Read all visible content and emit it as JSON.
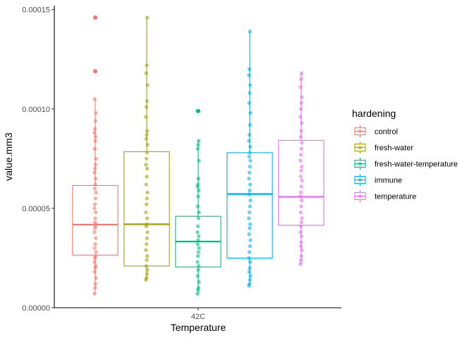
{
  "chart_data": {
    "type": "box",
    "xlabel": "Temperature",
    "ylabel": "value.mm3",
    "categories": [
      "42C"
    ],
    "ylim": [
      0,
      0.000152
    ],
    "yticks": [
      0,
      5e-05,
      0.0001,
      0.00015
    ],
    "ytick_labels": [
      "0.00000",
      "0.00005",
      "0.00010",
      "0.00015"
    ],
    "legend": {
      "title": "hardening",
      "position": "right"
    },
    "grid": false,
    "series": [
      {
        "name": "control",
        "color": "#F8766D",
        "box": {
          "q1": 2.65e-05,
          "median": 4.18e-05,
          "q3": 6.15e-05,
          "whisker_low": 7e-06,
          "whisker_high": 0.000105
        },
        "outliers": [
          0.000119,
          0.000146
        ],
        "points": [
          7e-06,
          1e-05,
          1.2e-05,
          1.5e-05,
          1.8e-05,
          2e-05,
          2.1e-05,
          2.3e-05,
          2.5e-05,
          2.6e-05,
          2.8e-05,
          3e-05,
          3.2e-05,
          3.5e-05,
          3.8e-05,
          4e-05,
          4.1e-05,
          4.2e-05,
          4.3e-05,
          4.5e-05,
          4.8e-05,
          5e-05,
          5.2e-05,
          5.5e-05,
          5.8e-05,
          6e-05,
          6.2e-05,
          6.5e-05,
          6.8e-05,
          7e-05,
          7.2e-05,
          7.5e-05,
          8e-05,
          8.4e-05,
          8.6e-05,
          8.8e-05,
          9e-05,
          9.4e-05,
          9.8e-05,
          0.000105,
          0.000119,
          0.000146
        ]
      },
      {
        "name": "fresh-water",
        "color": "#A3A500",
        "box": {
          "q1": 2.1e-05,
          "median": 4.2e-05,
          "q3": 7.85e-05,
          "whisker_low": 1.4e-05,
          "whisker_high": 0.000146
        },
        "outliers": [],
        "points": [
          1.4e-05,
          1.5e-05,
          1.7e-05,
          1.9e-05,
          2.1e-05,
          2.4e-05,
          2.6e-05,
          2.9e-05,
          3.2e-05,
          3.5e-05,
          3.8e-05,
          4.1e-05,
          4.2e-05,
          4.5e-05,
          4.8e-05,
          5.2e-05,
          5.5e-05,
          5.8e-05,
          6.2e-05,
          6.6e-05,
          7e-05,
          7.2e-05,
          7.5e-05,
          7.8e-05,
          8.2e-05,
          8.5e-05,
          8.7e-05,
          8.9e-05,
          9.6e-05,
          0.000101,
          0.000104,
          0.000112,
          0.000118,
          0.000122,
          0.000146
        ]
      },
      {
        "name": "fresh-water-temperature",
        "color": "#00BF7D",
        "box": {
          "q1": 2.05e-05,
          "median": 3.33e-05,
          "q3": 4.6e-05,
          "whisker_low": 7e-06,
          "whisker_high": 8.4e-05
        },
        "outliers": [
          9.9e-05
        ],
        "points": [
          7e-06,
          9e-06,
          1e-05,
          1.3e-05,
          1.6e-05,
          1.9e-05,
          2.1e-05,
          2.3e-05,
          2.6e-05,
          2.8e-05,
          3e-05,
          3.2e-05,
          3.4e-05,
          3.6e-05,
          3.8e-05,
          4.1e-05,
          4.5e-05,
          4.8e-05,
          5.1e-05,
          5.6e-05,
          5.9e-05,
          6.1e-05,
          6.2e-05,
          6.5e-05,
          7.4e-05,
          8e-05,
          8.2e-05,
          8.4e-05,
          9.9e-05
        ]
      },
      {
        "name": "immune",
        "color": "#00B0F6",
        "box": {
          "q1": 2.5e-05,
          "median": 5.72e-05,
          "q3": 7.8e-05,
          "whisker_low": 1.1e-05,
          "whisker_high": 0.000139
        },
        "outliers": [],
        "points": [
          1.1e-05,
          1.2e-05,
          1.4e-05,
          1.6e-05,
          1.8e-05,
          2e-05,
          2.3e-05,
          2.5e-05,
          2.8e-05,
          3.1e-05,
          3.4e-05,
          3.7e-05,
          4e-05,
          4.2e-05,
          4.5e-05,
          4.8e-05,
          5.1e-05,
          5.4e-05,
          5.7e-05,
          5.9e-05,
          6.2e-05,
          6.5e-05,
          6.8e-05,
          7.1e-05,
          7.4e-05,
          7.6e-05,
          7.8e-05,
          8.1e-05,
          8.4e-05,
          8.7e-05,
          9.2e-05,
          9.8e-05,
          0.000103,
          0.000108,
          0.000112,
          0.000117,
          0.00012,
          0.000139
        ]
      },
      {
        "name": "temperature",
        "color": "#E76BF3",
        "box": {
          "q1": 4.15e-05,
          "median": 5.58e-05,
          "q3": 8.42e-05,
          "whisker_low": 2.2e-05,
          "whisker_high": 0.000118
        },
        "outliers": [],
        "points": [
          2.2e-05,
          2.4e-05,
          2.6e-05,
          2.9e-05,
          3.1e-05,
          3.3e-05,
          3.6e-05,
          3.8e-05,
          4.1e-05,
          4.3e-05,
          4.5e-05,
          4.8e-05,
          5.1e-05,
          5.4e-05,
          5.6e-05,
          5.8e-05,
          6.1e-05,
          6.4e-05,
          6.6e-05,
          6.9e-05,
          7.1e-05,
          7.4e-05,
          7.7e-05,
          8e-05,
          8.3e-05,
          8.6e-05,
          8.9e-05,
          9.3e-05,
          9.6e-05,
          0.0001,
          0.000103,
          0.000106,
          0.000111,
          0.000115,
          0.000118
        ]
      }
    ]
  }
}
